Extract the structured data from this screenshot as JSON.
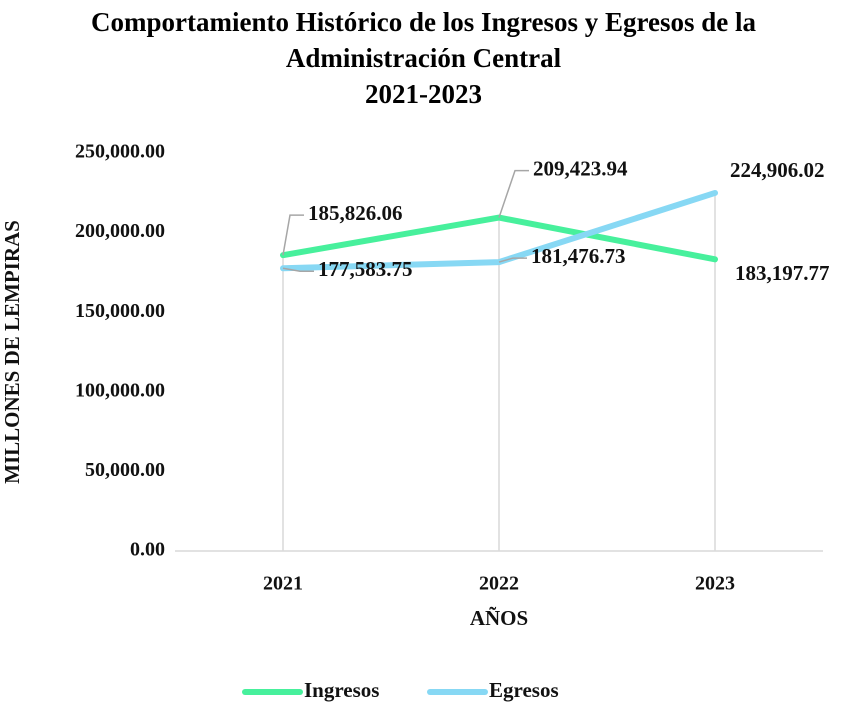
{
  "chart_data": {
    "type": "line",
    "title": "Comportamiento Histórico de los Ingresos y Egresos de la Administración Central",
    "subtitle": "2021-2023",
    "x_label": "AÑOS",
    "y_label": "MILLONES DE LEMPIRAS",
    "categories": [
      "2021",
      "2022",
      "2023"
    ],
    "series": [
      {
        "name": "Ingresos",
        "color": "#47f09c",
        "values": [
          185826.06,
          209423.94,
          183197.77
        ],
        "value_labels": [
          "185,826.06",
          "209,423.94",
          "183,197.77"
        ]
      },
      {
        "name": "Egresos",
        "color": "#87d8f4",
        "values": [
          177583.75,
          181476.73,
          224906.02
        ],
        "value_labels": [
          "177,583.75",
          "181,476.73",
          "224,906.02"
        ]
      }
    ],
    "ylim": [
      0,
      250000
    ],
    "yticks": [
      {
        "value": 0,
        "label": "0.00"
      },
      {
        "value": 50000,
        "label": "50,000.00"
      },
      {
        "value": 100000,
        "label": "100,000.00"
      },
      {
        "value": 150000,
        "label": "150,000.00"
      },
      {
        "value": 200000,
        "label": "200,000.00"
      },
      {
        "value": 250000,
        "label": "250,000.00"
      }
    ],
    "legend": "bottom"
  }
}
